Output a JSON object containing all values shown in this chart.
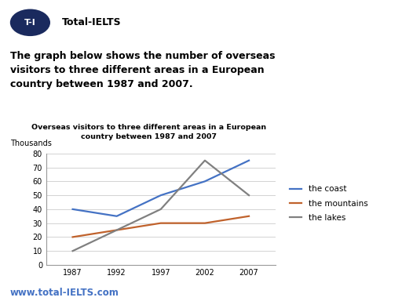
{
  "chart_title_line1": "Overseas visitors to three different areas in a European",
  "chart_title_line2": "country between 1987 and 2007",
  "ylabel": "Thousands",
  "years": [
    1987,
    1992,
    1997,
    2002,
    2007
  ],
  "coast": [
    40,
    35,
    50,
    60,
    75
  ],
  "mountains": [
    20,
    25,
    30,
    30,
    35
  ],
  "lakes": [
    10,
    25,
    40,
    75,
    50
  ],
  "coast_color": "#4472C4",
  "mountains_color": "#C0622C",
  "lakes_color": "#808080",
  "ylim": [
    0,
    80
  ],
  "yticks": [
    0,
    10,
    20,
    30,
    40,
    50,
    60,
    70,
    80
  ],
  "header_text": "The graph below shows the number of overseas\nvisitors to three different areas in a European\ncountry between 1987 and 2007.",
  "logo_text": "T-I",
  "logo_label": "Total-IELTS",
  "footer_text": "www.total-IELTS.com",
  "bg_color": "#ffffff",
  "logo_bg": "#1a2a5e",
  "logo_text_color": "#ffffff",
  "legend_labels": [
    "the coast",
    "the mountains",
    "the lakes"
  ]
}
